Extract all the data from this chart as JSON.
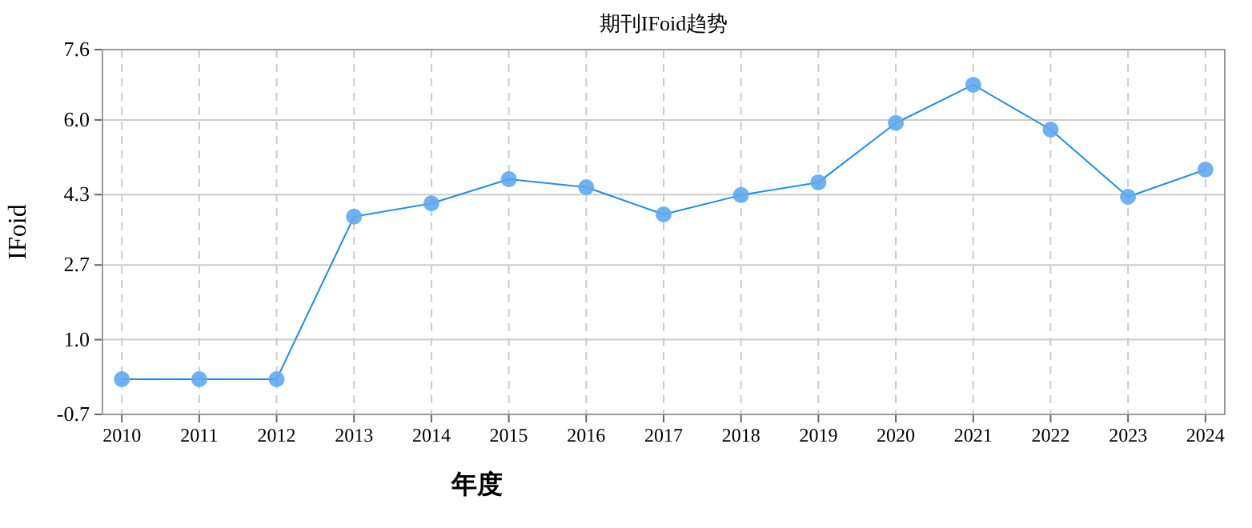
{
  "chart_data": {
    "type": "line",
    "title": "期刊IFoid趋势",
    "xlabel": "年度",
    "ylabel": "IFoid",
    "categories": [
      "2010",
      "2011",
      "2012",
      "2013",
      "2014",
      "2015",
      "2016",
      "2017",
      "2018",
      "2019",
      "2020",
      "2021",
      "2022",
      "2023",
      "2024"
    ],
    "series": [
      {
        "color": "#1e90e6",
        "values": [
          0.1,
          0.1,
          0.1,
          3.8,
          4.1,
          4.65,
          4.47,
          3.85,
          4.29,
          4.58,
          5.93,
          6.8,
          5.78,
          4.25,
          4.87
        ]
      }
    ],
    "ylim": [
      -0.7,
      7.6
    ],
    "yticks": [
      -0.7,
      {
        "value": 1,
        "label": "1.0"
      },
      2.7,
      4.3,
      {
        "value": 6,
        "label": "6.0"
      },
      7.6
    ],
    "grid": true,
    "marker": "circle",
    "line_style": "solid"
  }
}
